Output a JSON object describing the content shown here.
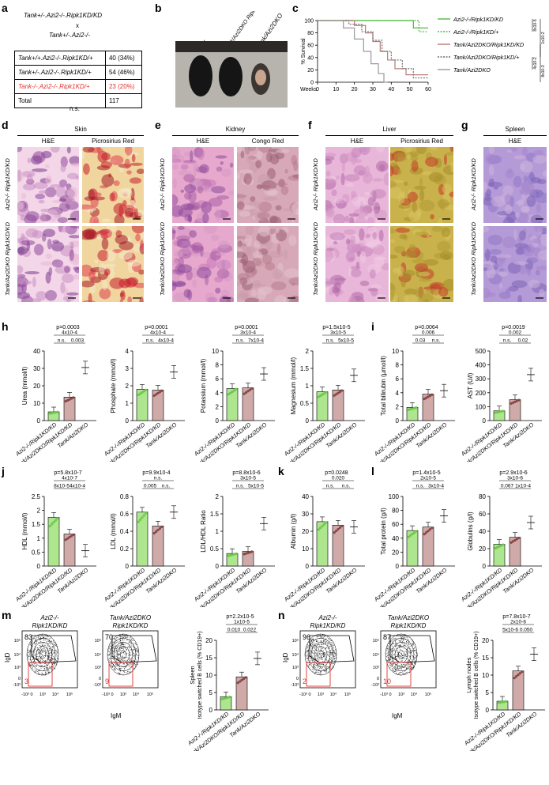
{
  "figure": {
    "panel_labels": [
      "a",
      "b",
      "c",
      "d",
      "e",
      "f",
      "g",
      "h",
      "i",
      "j",
      "k",
      "l",
      "m",
      "n"
    ],
    "panel_a": {
      "cross_line1": "Tank+/-.Azi2-/-.Ripk1KD/KD",
      "cross_x": "x",
      "cross_line2": "Tank+/-.Azi2-/-",
      "rows": [
        {
          "genotype": "Tank+/+.Azi2-/-.Ripk1KD/+",
          "count": "40 (34%)"
        },
        {
          "genotype": "Tank+/-.Azi2-/-.Ripk1KD/+",
          "count": "54 (46%)"
        },
        {
          "genotype": "Tank-/-.Azi2-/-.Ripk1KD/+",
          "count": "23 (20%)",
          "color": "#e0322d"
        },
        {
          "genotype": "Total",
          "count": "117"
        }
      ],
      "footer": "n.s."
    },
    "panel_b": {
      "labels": [
        "WT",
        "Tank/Azi2DKO Ripk1KD/+",
        "Tank/Azi2DKO"
      ]
    },
    "panel_c": {
      "chart_data": {
        "type": "line",
        "ylabel": "% Survival",
        "xlabel": "Weeks",
        "xticks": [
          0,
          10,
          20,
          30,
          40,
          50,
          60
        ],
        "yticks": [
          0,
          20,
          40,
          60,
          80,
          100
        ],
        "series": [
          {
            "name": "Azi2-/-/Ripk1KD/KD",
            "color": "#4fb83f",
            "dash": false,
            "x": [
              0,
              52,
              52,
              60
            ],
            "y": [
              100,
              100,
              88,
              88
            ]
          },
          {
            "name": "Azi2-/-/Ripk1KD/+",
            "color": "#4fb83f",
            "dash": true,
            "x": [
              0,
              55,
              55,
              60
            ],
            "y": [
              100,
              100,
              82,
              82
            ]
          },
          {
            "name": "Tank/Azi2DKO/Ripk1KD/KD",
            "color": "#b97a7a",
            "dash": false,
            "x": [
              0,
              20,
              20,
              26,
              26,
              30,
              30,
              34,
              34,
              38,
              38,
              42,
              42,
              48,
              48,
              60
            ],
            "y": [
              100,
              100,
              92,
              92,
              80,
              80,
              66,
              66,
              50,
              50,
              36,
              36,
              22,
              22,
              12,
              12
            ]
          },
          {
            "name": "Tank/Azi2DKO/Ripk1KD/+",
            "color": "#6e6e6e",
            "dash": true,
            "x": [
              0,
              17,
              17,
              24,
              24,
              30,
              30,
              35,
              35,
              40,
              40,
              46,
              46,
              52,
              52,
              60
            ],
            "y": [
              100,
              100,
              94,
              94,
              82,
              82,
              68,
              68,
              50,
              50,
              36,
              36,
              22,
              22,
              7,
              7
            ]
          },
          {
            "name": "Tank/Azi2DKO",
            "color": "#9a9a9a",
            "dash": false,
            "x": [
              0,
              14,
              14,
              20,
              20,
              25,
              25,
              29,
              29,
              33,
              33,
              36,
              36,
              38
            ],
            "y": [
              100,
              100,
              88,
              88,
              70,
              70,
              50,
              50,
              30,
              30,
              14,
              14,
              0,
              0
            ]
          }
        ],
        "side_stats": [
          "8x10-5",
          "1x10-2",
          "4x10-2",
          "8x10-3"
        ]
      }
    },
    "histology": {
      "d": {
        "title": "Skin",
        "stains": [
          "H&E",
          "Picrosirius Red"
        ],
        "rows": [
          "Azi2-/- Ripk1KD/KD",
          "Tank/Azi2DKO Ripk1KD/KD"
        ]
      },
      "e": {
        "title": "Kidney",
        "stains": [
          "H&E",
          "Congo Red"
        ],
        "rows": [
          "Azi2-/- Ripk1KD/KD",
          "Tank/Azi2DKO Ripk1KD/KD"
        ]
      },
      "f": {
        "title": "Liver",
        "stains": [
          "H&E",
          "Picrosirius Red"
        ],
        "rows": [
          "Azi2-/- Ripk1KD/KD",
          "Tank/Azi2DKO Ripk1KD/KD"
        ]
      },
      "g": {
        "title": "Spleen",
        "stains": [
          "H&E"
        ],
        "rows": [
          "Azi2-/- Ripk1KD/KD",
          "Tank/Azi2DKO Ripk1KD/KD"
        ]
      }
    },
    "groups": [
      "Azi2-/-/Ripk1KD/KD",
      "Tank/Azi2DKO/Ripk1KD/KD",
      "Tank/Azi2DKO"
    ],
    "chart_data": [
      {
        "panel": "h",
        "type": "bar",
        "ylabel": "Urea (mmol/l)",
        "ylim": [
          0,
          40
        ],
        "yticks": [
          0,
          10,
          20,
          30,
          40
        ],
        "values": [
          5.0,
          13.5,
          30.5
        ],
        "p_top": "p=0.0003",
        "comparisons": [
          "4x10-4",
          "n.s.",
          "0.003"
        ]
      },
      {
        "panel": "h",
        "type": "bar",
        "ylabel": "Phosphate (mmol/l)",
        "ylim": [
          0,
          4
        ],
        "yticks": [
          0,
          1,
          2,
          3,
          4
        ],
        "values": [
          1.8,
          1.75,
          2.8
        ],
        "p_top": "p=0.0001",
        "comparisons": [
          "4x10-4",
          "n.s.",
          "4x10-4"
        ]
      },
      {
        "panel": "h",
        "type": "bar",
        "ylabel": "Potassium (mmol/l)",
        "ylim": [
          0,
          10
        ],
        "yticks": [
          0,
          2,
          4,
          6,
          8,
          10
        ],
        "values": [
          4.6,
          4.7,
          6.7
        ],
        "p_top": "p=0.0001",
        "comparisons": [
          "3x10-4",
          "n.s.",
          "7x10-4"
        ]
      },
      {
        "panel": "h",
        "type": "bar",
        "ylabel": "Magnesium (mmol/l)",
        "ylim": [
          0,
          2.0
        ],
        "yticks": [
          0,
          0.5,
          1.0,
          1.5,
          2.0
        ],
        "values": [
          0.83,
          0.88,
          1.3
        ],
        "p_top": "p=1.5x10-5",
        "comparisons": [
          "3x10-5",
          "n.s.",
          "5x10-5"
        ]
      },
      {
        "panel": "i",
        "type": "bar",
        "ylabel": "Total bilirubin (µmol/l)",
        "ylim": [
          0,
          10
        ],
        "yticks": [
          0,
          2,
          4,
          6,
          8,
          10
        ],
        "values": [
          1.9,
          3.8,
          4.3
        ],
        "p_top": "p=0.0064",
        "comparisons": [
          "0.006",
          "0.03",
          "n.s."
        ]
      },
      {
        "panel": "i",
        "type": "bar",
        "ylabel": "AST (U/l)",
        "ylim": [
          0,
          500
        ],
        "yticks": [
          0,
          100,
          200,
          300,
          400,
          500
        ],
        "values": [
          70,
          150,
          330
        ],
        "p_top": "p=0.0019",
        "comparisons": [
          "0.002",
          "n.s.",
          "0.02"
        ]
      },
      {
        "panel": "j",
        "type": "bar",
        "ylabel": "HDL (mmol/l)",
        "ylim": [
          0,
          2.5
        ],
        "yticks": [
          0,
          0.5,
          1.0,
          1.5,
          2.0,
          2.5
        ],
        "values": [
          1.75,
          1.15,
          0.55
        ],
        "p_top": "p=5.8x10-7",
        "comparisons": [
          "4x10-7",
          "8x10-5",
          "4x10-4"
        ]
      },
      {
        "panel": "j",
        "type": "bar",
        "ylabel": "LDL (mmol/l)",
        "ylim": [
          0,
          0.8
        ],
        "yticks": [
          0,
          0.2,
          0.4,
          0.6,
          0.8
        ],
        "values": [
          0.62,
          0.46,
          0.62
        ],
        "p_top": "p=9.9x10-4",
        "comparisons": [
          "n.s.",
          "0.005",
          "n.s."
        ]
      },
      {
        "panel": "j",
        "type": "bar",
        "ylabel": "LDL/HDL Ratio",
        "ylim": [
          0,
          2.0
        ],
        "yticks": [
          0,
          0.5,
          1.0,
          1.5,
          2.0
        ],
        "values": [
          0.36,
          0.42,
          1.22
        ],
        "p_top": "p=8.8x10-6",
        "comparisons": [
          "3x10-5",
          "n.s.",
          "5x10-5"
        ]
      },
      {
        "panel": "k",
        "type": "bar",
        "ylabel": "Albumin (g/l)",
        "ylim": [
          0,
          40
        ],
        "yticks": [
          0,
          10,
          20,
          30,
          40
        ],
        "values": [
          25.5,
          23.5,
          22.5
        ],
        "p_top": "p=0.0248",
        "comparisons": [
          "0.020",
          "n.s.",
          "n.s."
        ]
      },
      {
        "panel": "l",
        "type": "bar",
        "ylabel": "Total protein (g/l)",
        "ylim": [
          0,
          100
        ],
        "yticks": [
          0,
          20,
          40,
          60,
          80,
          100
        ],
        "values": [
          51,
          56,
          72
        ],
        "p_top": "p=1.4x10-5",
        "comparisons": [
          "2x10-5",
          "n.s.",
          "3x10-4"
        ]
      },
      {
        "panel": "l",
        "type": "bar",
        "ylabel": "Globulins (g/l)",
        "ylim": [
          0,
          80
        ],
        "yticks": [
          0,
          20,
          40,
          60,
          80
        ],
        "values": [
          25,
          33,
          50
        ],
        "p_top": "p=2.9x10-6",
        "comparisons": [
          "3x10-6",
          "0.067",
          "1x10-4"
        ]
      },
      {
        "panel": "m",
        "type": "bar",
        "ylabel": "Isotype switched B cells (% CD19+)",
        "ylabel_top": "Spleen",
        "ylim": [
          0,
          20
        ],
        "yticks": [
          0,
          5,
          10,
          15,
          20
        ],
        "values": [
          3.8,
          9.5,
          14.8
        ],
        "p_top": "p=2.2x10-5",
        "comparisons": [
          "1x10-5",
          "0.010",
          "0.022"
        ]
      },
      {
        "panel": "n",
        "type": "bar",
        "ylabel": "Isotype switched B cells (% CD19+)",
        "ylabel_top": "Lymph nodes",
        "ylim": [
          0,
          20
        ],
        "yticks": [
          0,
          5,
          10,
          15,
          20
        ],
        "values": [
          2.5,
          11.2,
          16.0
        ],
        "p_top": "p=7.8x10-7",
        "comparisons": [
          "2x10-6",
          "5x10-6",
          "0.050"
        ]
      }
    ],
    "flow": {
      "m": {
        "plots": [
          {
            "title": "Azi2-/- Ripk1KD/KD",
            "upper": "83",
            "lower": "3"
          },
          {
            "title": "Tank/Azi2DKO Ripk1KD/KD",
            "upper": "70",
            "lower": "9"
          }
        ]
      },
      "n": {
        "plots": [
          {
            "title": "Azi2-/- Ripk1KD/KD",
            "upper": "96",
            "lower": "2"
          },
          {
            "title": "Tank/Azi2DKO Ripk1KD/KD",
            "upper": "87",
            "lower": "10"
          }
        ]
      },
      "xlabel": "IgM",
      "ylabel": "IgD",
      "ticks": [
        "-10³",
        "0",
        "10³",
        "10⁴",
        "10⁵"
      ]
    }
  }
}
